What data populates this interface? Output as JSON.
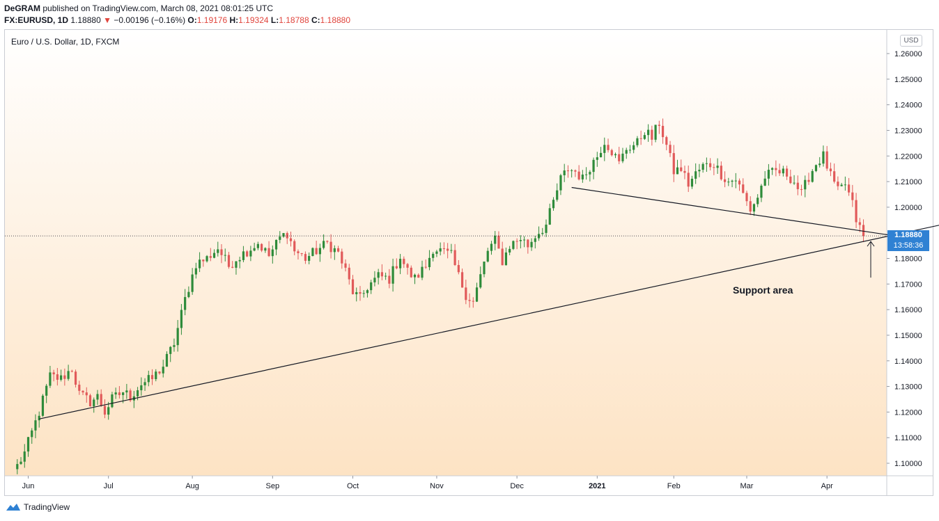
{
  "header": {
    "author": "DeGRAM",
    "published_text": "published on TradingView.com, March 08, 2021 08:01:25 UTC",
    "symbol": "FX:EURUSD, 1D",
    "last": "1.18880",
    "change_arrow": "▼",
    "change": "−0.00196 (−0.16%)",
    "o_label": "O:",
    "o_value": "1.19176",
    "h_label": "H:",
    "h_value": "1.19324",
    "l_label": "L:",
    "l_value": "1.18788",
    "c_label": "C:",
    "c_value": "1.18880"
  },
  "series_title": "Euro / U.S. Dollar, 1D, FXCM",
  "currency_badge": "USD",
  "price_tag": {
    "price": "1.18880",
    "countdown": "13:58:36"
  },
  "annotation": "Support area",
  "footer": {
    "brand": "TradingView"
  },
  "colors": {
    "up": "#2e8b3a",
    "down": "#e15a5a",
    "accent": "#2f81d3"
  },
  "chart_data": {
    "type": "candlestick",
    "title": "Euro / U.S. Dollar, 1D, FXCM",
    "ylim": [
      1.0955,
      1.2655
    ],
    "y_ticks": [
      "1.26000",
      "1.25000",
      "1.24000",
      "1.23000",
      "1.22000",
      "1.21000",
      "1.20000",
      "1.19000",
      "1.18000",
      "1.17000",
      "1.16000",
      "1.15000",
      "1.14000",
      "1.13000",
      "1.12000",
      "1.11000",
      "1.10000"
    ],
    "x_labels": [
      "Jun",
      "Jul",
      "Aug",
      "Sep",
      "Oct",
      "Nov",
      "Dec",
      "2021",
      "Feb",
      "Mar",
      "Apr"
    ],
    "current_price": 1.1888,
    "start_index": -3,
    "label_indices": [
      0,
      22,
      45,
      67,
      89,
      112,
      134,
      156,
      177,
      197,
      219
    ],
    "key_levels": [
      [
        -3,
        1.099
      ],
      [
        -1,
        1.104
      ],
      [
        3,
        1.12
      ],
      [
        6,
        1.134
      ],
      [
        9,
        1.133
      ],
      [
        12,
        1.137
      ],
      [
        14,
        1.127
      ],
      [
        17,
        1.124
      ],
      [
        19,
        1.126
      ],
      [
        21,
        1.12
      ],
      [
        23,
        1.125
      ],
      [
        26,
        1.128
      ],
      [
        28,
        1.126
      ],
      [
        31,
        1.131
      ],
      [
        34,
        1.133
      ],
      [
        37,
        1.138
      ],
      [
        40,
        1.147
      ],
      [
        43,
        1.164
      ],
      [
        46,
        1.178
      ],
      [
        49,
        1.18
      ],
      [
        52,
        1.184
      ],
      [
        55,
        1.177
      ],
      [
        57,
        1.18
      ],
      [
        60,
        1.183
      ],
      [
        63,
        1.186
      ],
      [
        66,
        1.181
      ],
      [
        69,
        1.188
      ],
      [
        71,
        1.19
      ],
      [
        73,
        1.183
      ],
      [
        76,
        1.18
      ],
      [
        79,
        1.183
      ],
      [
        82,
        1.186
      ],
      [
        85,
        1.182
      ],
      [
        87,
        1.175
      ],
      [
        89,
        1.167
      ],
      [
        91,
        1.164
      ],
      [
        93,
        1.169
      ],
      [
        96,
        1.173
      ],
      [
        99,
        1.172
      ],
      [
        102,
        1.181
      ],
      [
        104,
        1.175
      ],
      [
        106,
        1.172
      ],
      [
        109,
        1.177
      ],
      [
        111,
        1.184
      ],
      [
        113,
        1.183
      ],
      [
        116,
        1.181
      ],
      [
        118,
        1.173
      ],
      [
        120,
        1.166
      ],
      [
        122,
        1.163
      ],
      [
        124,
        1.173
      ],
      [
        126,
        1.183
      ],
      [
        128,
        1.187
      ],
      [
        130,
        1.179
      ],
      [
        132,
        1.185
      ],
      [
        135,
        1.188
      ],
      [
        137,
        1.185
      ],
      [
        139,
        1.189
      ],
      [
        142,
        1.193
      ],
      [
        144,
        1.202
      ],
      [
        146,
        1.211
      ],
      [
        148,
        1.215
      ],
      [
        150,
        1.214
      ],
      [
        152,
        1.211
      ],
      [
        154,
        1.216
      ],
      [
        156,
        1.22
      ],
      [
        158,
        1.226
      ],
      [
        160,
        1.222
      ],
      [
        162,
        1.217
      ],
      [
        164,
        1.223
      ],
      [
        167,
        1.225
      ],
      [
        169,
        1.23
      ],
      [
        171,
        1.227
      ],
      [
        173,
        1.233
      ],
      [
        175,
        1.224
      ],
      [
        177,
        1.214
      ],
      [
        179,
        1.215
      ],
      [
        181,
        1.209
      ],
      [
        183,
        1.213
      ],
      [
        185,
        1.216
      ],
      [
        188,
        1.217
      ],
      [
        190,
        1.213
      ],
      [
        192,
        1.21
      ],
      [
        194,
        1.211
      ],
      [
        196,
        1.205
      ],
      [
        198,
        1.199
      ],
      [
        200,
        1.204
      ],
      [
        202,
        1.212
      ],
      [
        205,
        1.214
      ],
      [
        208,
        1.213
      ],
      [
        210,
        1.21
      ],
      [
        212,
        1.205
      ],
      [
        214,
        1.212
      ],
      [
        216,
        1.217
      ],
      [
        218,
        1.22
      ],
      [
        220,
        1.212
      ],
      [
        222,
        1.206
      ],
      [
        224,
        1.209
      ],
      [
        226,
        1.201
      ],
      [
        227,
        1.195
      ],
      [
        228,
        1.1918
      ],
      [
        229,
        1.1888
      ]
    ],
    "trendlines": [
      {
        "name": "ascending-support",
        "points": [
          [
            3,
            1.1173
          ],
          [
            259,
            1.1958
          ]
        ]
      },
      {
        "name": "descending-line",
        "points": [
          [
            149,
            1.2077
          ],
          [
            247,
            1.1868
          ]
        ]
      }
    ],
    "annotation": {
      "text": "Support area",
      "x_index": 231,
      "y": 1.1888
    }
  }
}
